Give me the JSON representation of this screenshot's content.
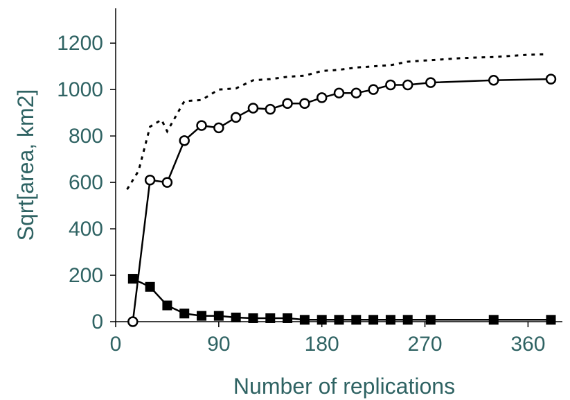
{
  "chart_data": {
    "type": "line",
    "title": "",
    "xlabel": "Number of replications",
    "ylabel": "Sqrt[area, km2]",
    "xlim": [
      0,
      390
    ],
    "ylim": [
      0,
      1350
    ],
    "xticks": [
      0,
      90,
      180,
      270,
      360
    ],
    "yticks": [
      0,
      200,
      400,
      600,
      800,
      1000,
      1200
    ],
    "grid": false,
    "legend": "none",
    "series": [
      {
        "style": "dotted",
        "color": "#000000",
        "x": [
          10,
          20,
          30,
          40,
          45,
          60,
          75,
          90,
          105,
          120,
          135,
          150,
          165,
          180,
          195,
          210,
          225,
          240,
          255,
          270,
          285,
          300,
          315,
          330,
          345,
          360,
          375
        ],
        "y": [
          570,
          650,
          840,
          870,
          820,
          950,
          955,
          1000,
          1005,
          1040,
          1045,
          1055,
          1060,
          1080,
          1085,
          1095,
          1100,
          1105,
          1120,
          1125,
          1130,
          1135,
          1138,
          1140,
          1145,
          1150,
          1152
        ]
      },
      {
        "style": "solid-open-circle",
        "color": "#000000",
        "x": [
          15,
          30,
          45,
          60,
          75,
          90,
          105,
          120,
          135,
          150,
          165,
          180,
          195,
          210,
          225,
          240,
          255,
          275,
          330,
          380
        ],
        "y": [
          0,
          610,
          600,
          780,
          845,
          835,
          880,
          920,
          915,
          940,
          940,
          965,
          985,
          985,
          1000,
          1020,
          1020,
          1030,
          1040,
          1045
        ]
      },
      {
        "style": "solid-filled-square",
        "color": "#000000",
        "x": [
          15,
          30,
          45,
          60,
          75,
          90,
          105,
          120,
          135,
          150,
          165,
          180,
          195,
          210,
          225,
          240,
          255,
          275,
          330,
          380
        ],
        "y": [
          185,
          150,
          70,
          35,
          25,
          25,
          18,
          15,
          15,
          15,
          8,
          8,
          8,
          8,
          8,
          8,
          8,
          8,
          8,
          8
        ]
      }
    ]
  }
}
